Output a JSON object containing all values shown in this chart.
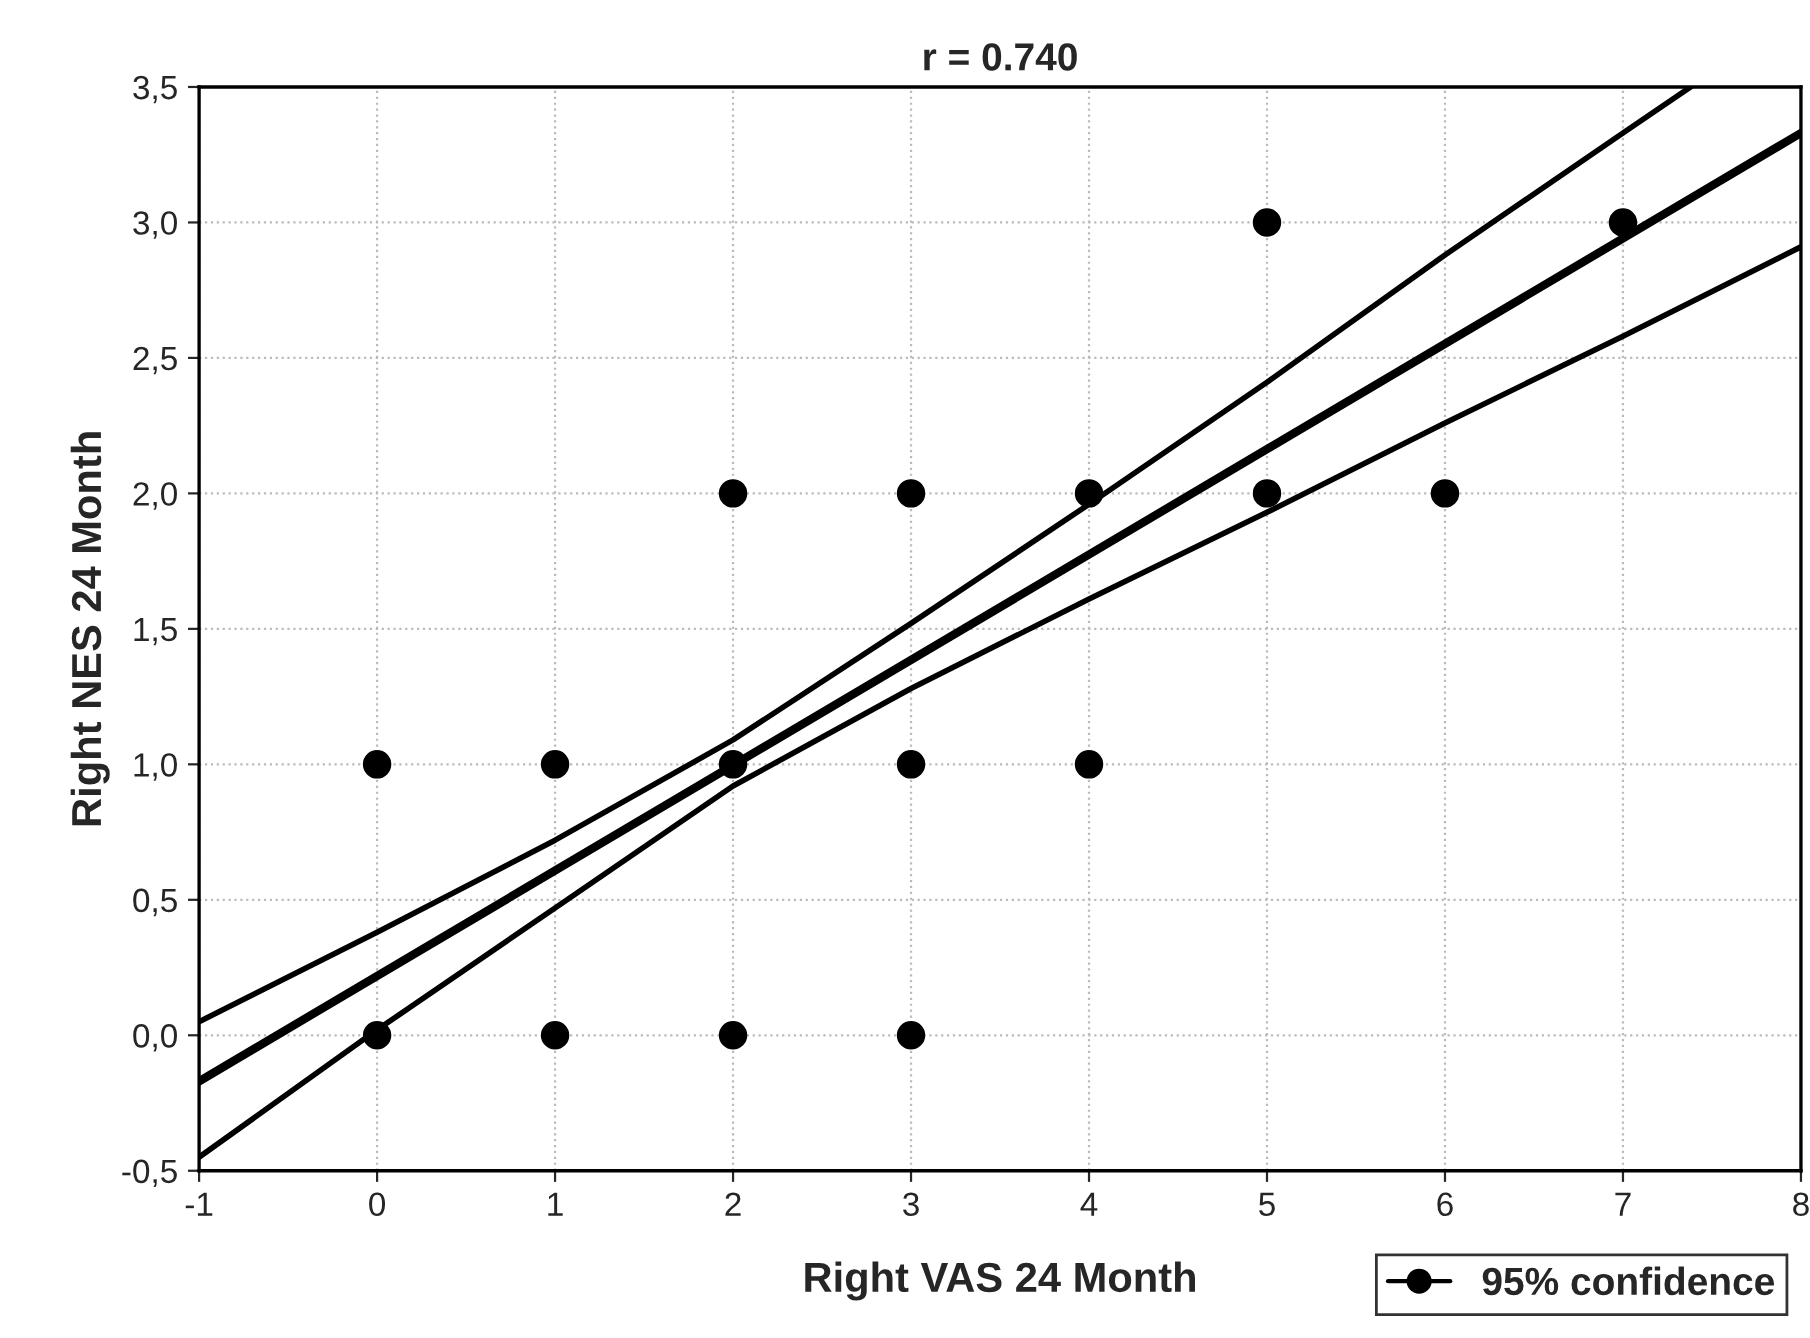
{
  "chart_data": {
    "type": "scatter",
    "title": "r = 0.740",
    "xlabel": "Right VAS 24 Month",
    "ylabel": "Right NES 24 Month",
    "xlim": [
      -1,
      8
    ],
    "xticks": [
      -1,
      0,
      1,
      2,
      3,
      4,
      5,
      6,
      7,
      8
    ],
    "ylim": [
      -0.5,
      3.5
    ],
    "yticks": [
      {
        "value": -0.5,
        "label": "-0,5"
      },
      {
        "value": 0,
        "label": "0,0"
      },
      {
        "value": 0.5,
        "label": "0,5"
      },
      {
        "value": 1,
        "label": "1,0"
      },
      {
        "value": 1.5,
        "label": "1,5"
      },
      {
        "value": 2,
        "label": "2,0"
      },
      {
        "value": 2.5,
        "label": "2,5"
      },
      {
        "value": 3,
        "label": "3,0"
      },
      {
        "value": 3.5,
        "label": "3,5"
      }
    ],
    "grid": true,
    "legend": "bottom right",
    "series": [
      {
        "name": "95% confidence",
        "color": "#000000",
        "marker": "circle",
        "x": [
          0,
          0,
          1,
          1,
          2,
          2,
          2,
          3,
          3,
          3,
          4,
          4,
          5,
          5,
          6,
          7
        ],
        "values": [
          0,
          1,
          1,
          0,
          2,
          1,
          0,
          2,
          1,
          0,
          2,
          1,
          3,
          2,
          2,
          3
        ]
      },
      {
        "type": "line",
        "color": "#000000",
        "line_style": "solid",
        "x": [
          -1,
          8
        ],
        "values": [
          -0.17,
          3.33
        ]
      },
      {
        "type": "line",
        "color": "#000000",
        "line_style": "solid",
        "x": [
          -1,
          0,
          1,
          2,
          3,
          4,
          5,
          6,
          7,
          7.38
        ],
        "values": [
          0.05,
          0.38,
          0.72,
          1.09,
          1.52,
          1.96,
          2.41,
          2.88,
          3.33,
          3.5
        ]
      },
      {
        "type": "line",
        "color": "#000000",
        "line_style": "solid",
        "x": [
          -1,
          0,
          1,
          2,
          3,
          4,
          5,
          6,
          7,
          8
        ],
        "values": [
          -0.45,
          0.02,
          0.47,
          0.92,
          1.28,
          1.61,
          1.93,
          2.26,
          2.58,
          2.91
        ]
      }
    ]
  }
}
